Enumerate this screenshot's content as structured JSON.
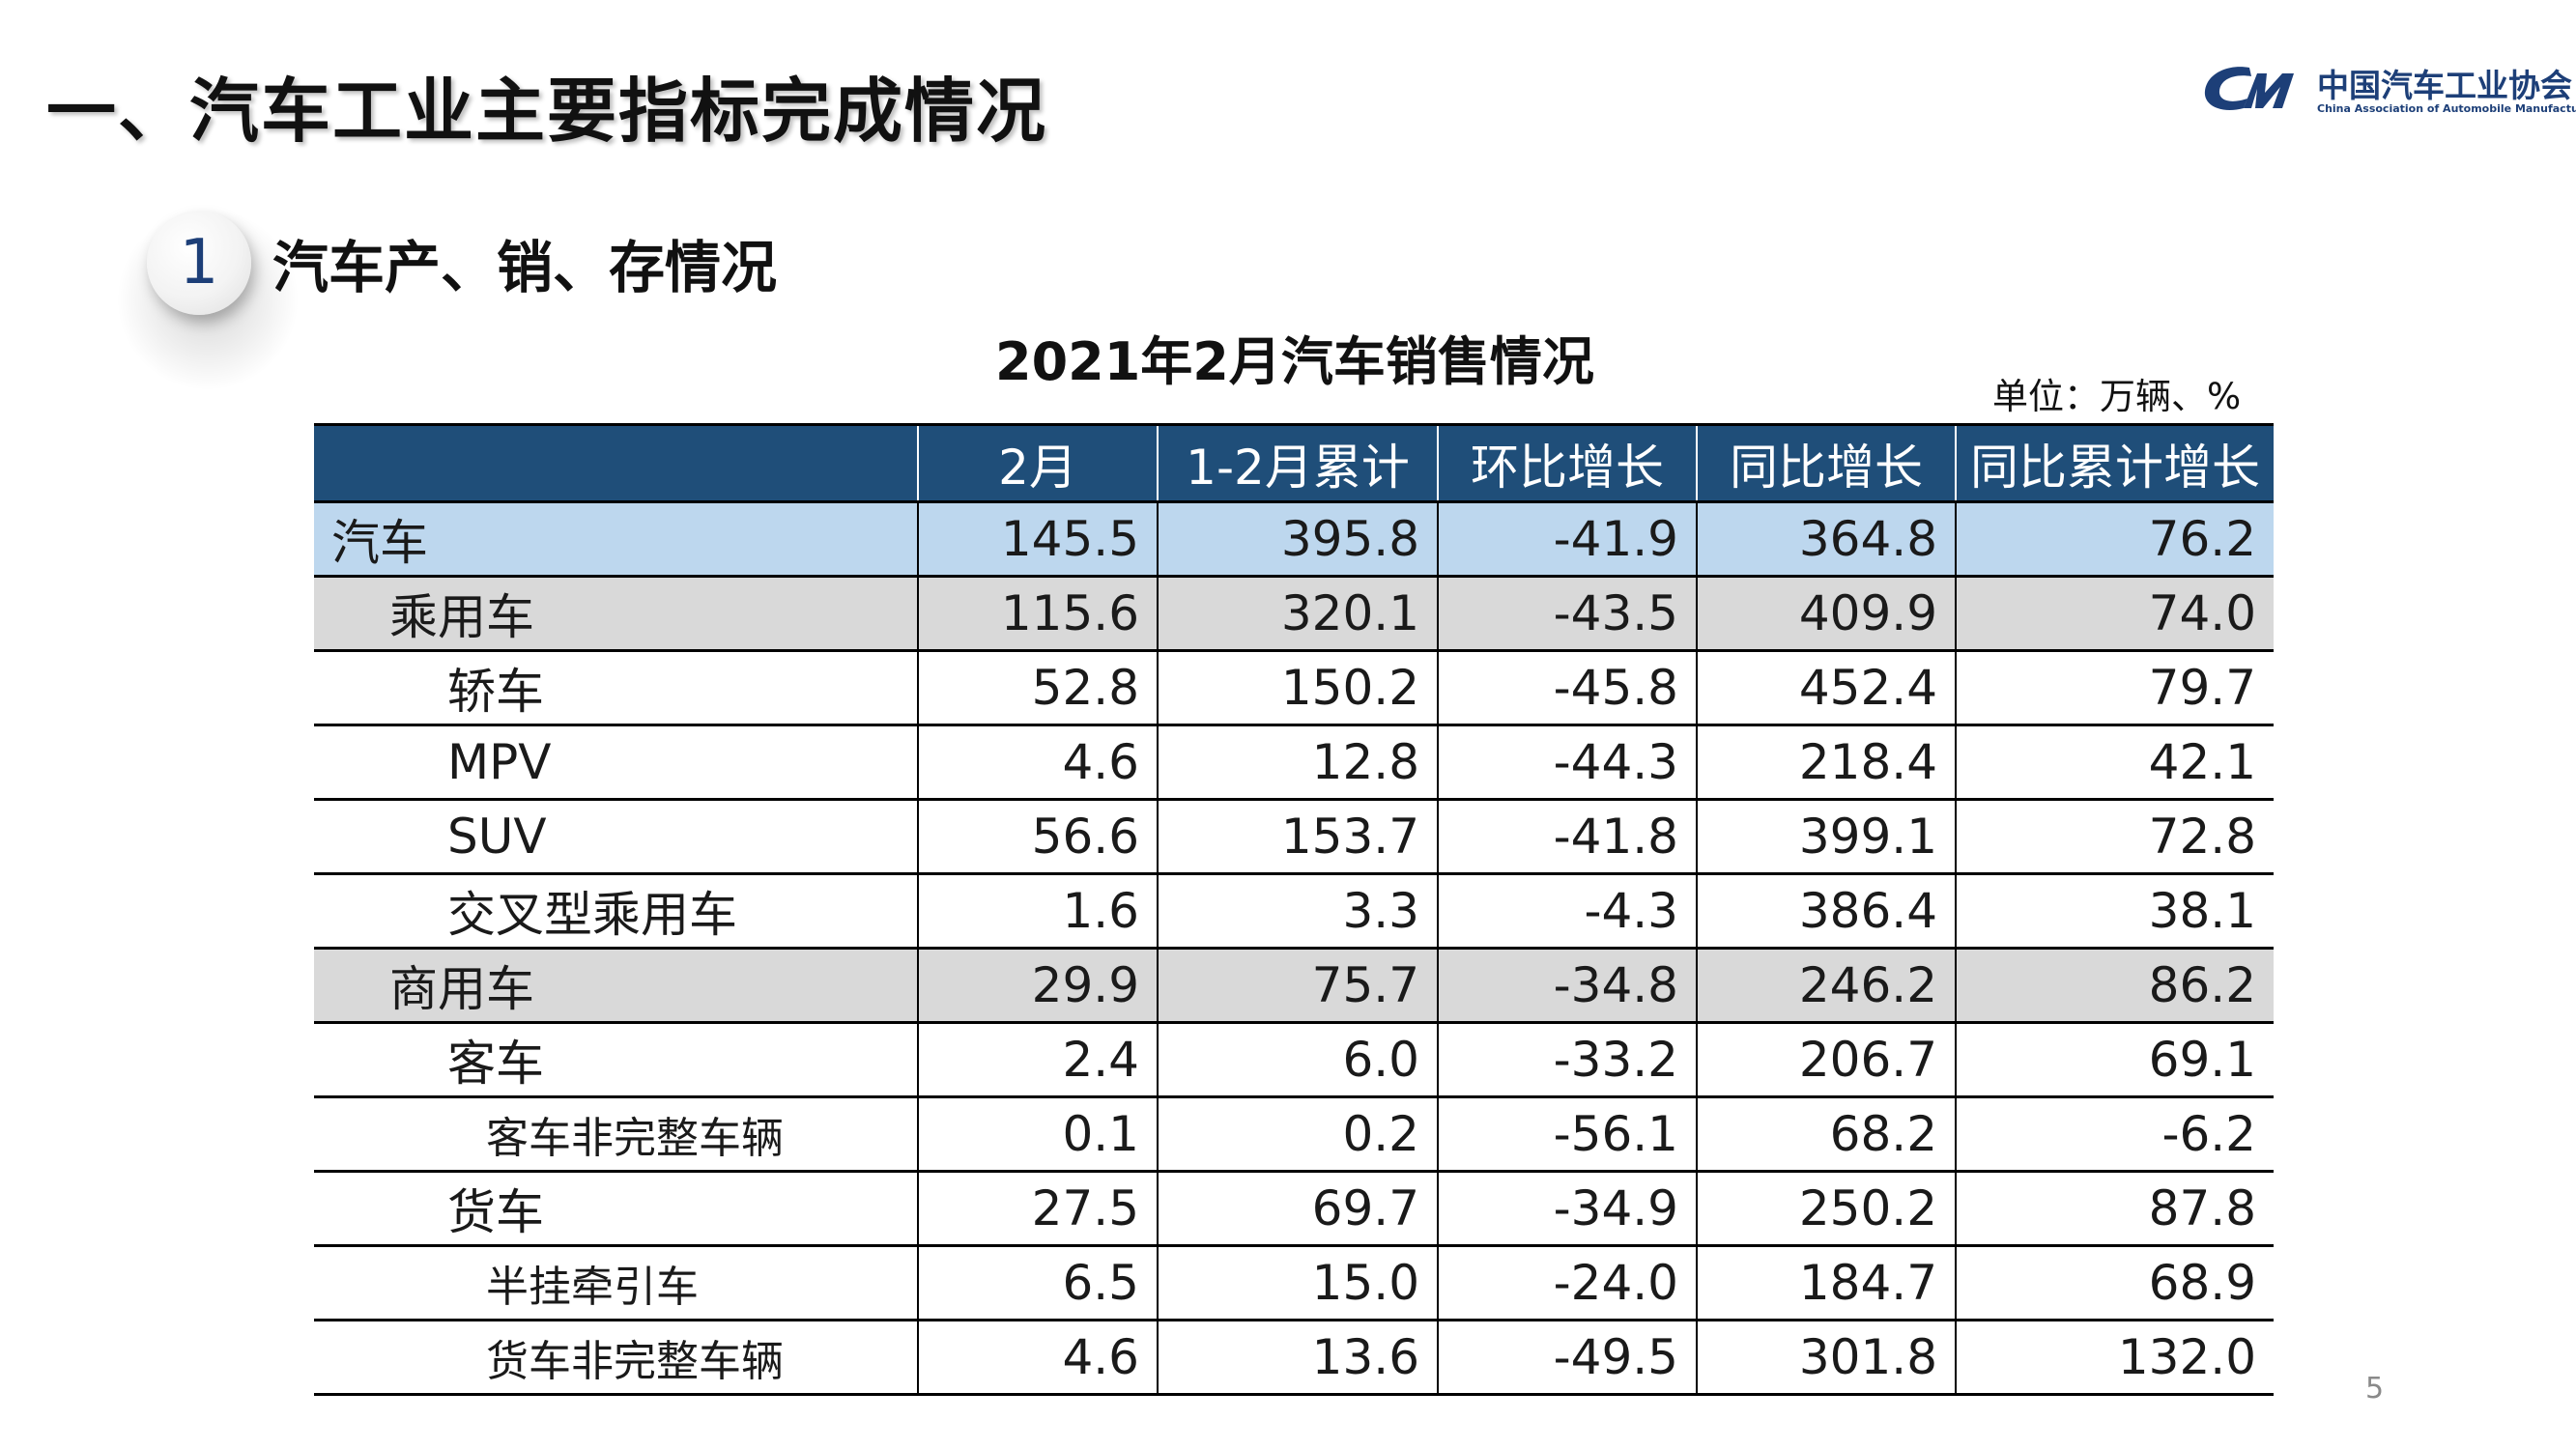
{
  "slide": {
    "heading": "一、汽车工业主要指标完成情况",
    "section_number": "1",
    "section_title": "汽车产、销、存情况",
    "page_number": "5"
  },
  "logo": {
    "name_cn": "中国汽车工业协会",
    "name_en": "China Association of Automobile Manufacturers",
    "color": "#1d3f78"
  },
  "table": {
    "caption": "2021年2月汽车销售情况",
    "unit": "单位：万辆、%",
    "header_color": "#1f4e79",
    "total_row_color": "#bdd7ee",
    "group_row_color": "#d9d9d9",
    "columns": [
      "",
      "2月",
      "1-2月累计",
      "环比增长",
      "同比增长",
      "同比累计增长"
    ],
    "rows": [
      {
        "name": "汽车",
        "level": 0,
        "style": "total",
        "values": [
          "145.5",
          "395.8",
          "-41.9",
          "364.8",
          "76.2"
        ]
      },
      {
        "name": "乘用车",
        "level": 1,
        "style": "group",
        "values": [
          "115.6",
          "320.1",
          "-43.5",
          "409.9",
          "74.0"
        ]
      },
      {
        "name": "轿车",
        "level": 2,
        "style": "plain",
        "values": [
          "52.8",
          "150.2",
          "-45.8",
          "452.4",
          "79.7"
        ]
      },
      {
        "name": "MPV",
        "level": 2,
        "style": "plain",
        "values": [
          "4.6",
          "12.8",
          "-44.3",
          "218.4",
          "42.1"
        ]
      },
      {
        "name": "SUV",
        "level": 2,
        "style": "plain",
        "values": [
          "56.6",
          "153.7",
          "-41.8",
          "399.1",
          "72.8"
        ]
      },
      {
        "name": "交叉型乘用车",
        "level": 2,
        "style": "plain",
        "values": [
          "1.6",
          "3.3",
          "-4.3",
          "386.4",
          "38.1"
        ]
      },
      {
        "name": "商用车",
        "level": 1,
        "style": "group",
        "values": [
          "29.9",
          "75.7",
          "-34.8",
          "246.2",
          "86.2"
        ]
      },
      {
        "name": "客车",
        "level": 2,
        "style": "plain",
        "values": [
          "2.4",
          "6.0",
          "-33.2",
          "206.7",
          "69.1"
        ]
      },
      {
        "name": "客车非完整车辆",
        "level": 3,
        "style": "plain",
        "values": [
          "0.1",
          "0.2",
          "-56.1",
          "68.2",
          "-6.2"
        ]
      },
      {
        "name": "货车",
        "level": 2,
        "style": "plain",
        "values": [
          "27.5",
          "69.7",
          "-34.9",
          "250.2",
          "87.8"
        ]
      },
      {
        "name": "半挂牵引车",
        "level": 3,
        "style": "plain",
        "values": [
          "6.5",
          "15.0",
          "-24.0",
          "184.7",
          "68.9"
        ]
      },
      {
        "name": "货车非完整车辆",
        "level": 3,
        "style": "plain",
        "values": [
          "4.6",
          "13.6",
          "-49.5",
          "301.8",
          "132.0"
        ]
      }
    ]
  }
}
